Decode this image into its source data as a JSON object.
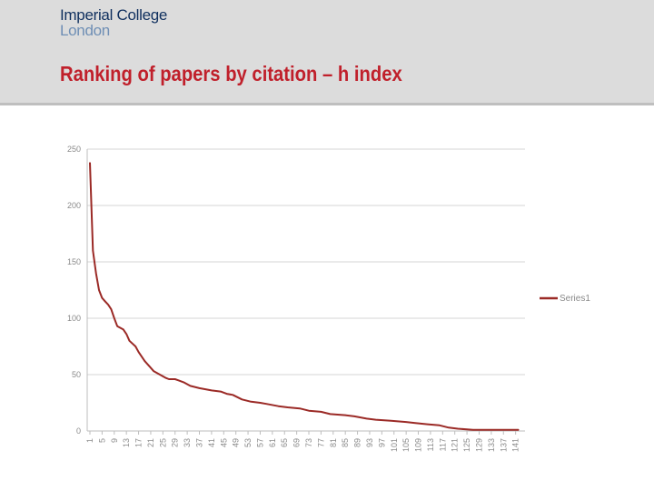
{
  "header": {
    "logo_line1": "Imperial College",
    "logo_line2": "London",
    "title": "Ranking of papers by citation – h index"
  },
  "colors": {
    "series": "#9b2a26",
    "title": "#c0202b",
    "header_bg": "#dcdcdc"
  },
  "chart_data": {
    "type": "line",
    "title": "",
    "xlabel": "",
    "ylabel": "",
    "ylim": [
      0,
      250
    ],
    "yticks": [
      0,
      50,
      100,
      150,
      200,
      250
    ],
    "xlim": [
      1,
      142
    ],
    "xticks": [
      1,
      5,
      9,
      13,
      17,
      21,
      25,
      29,
      33,
      37,
      41,
      45,
      49,
      53,
      57,
      61,
      65,
      69,
      73,
      77,
      81,
      85,
      89,
      93,
      97,
      101,
      105,
      109,
      113,
      117,
      121,
      125,
      129,
      133,
      137,
      141
    ],
    "grid": true,
    "legend": "right",
    "series": [
      {
        "name": "Series1",
        "color": "#9b2a26",
        "x": [
          1,
          2,
          3,
          4,
          5,
          6,
          7,
          8,
          9,
          10,
          12,
          13,
          14,
          16,
          17,
          19,
          21,
          22,
          24,
          26,
          27,
          29,
          30,
          32,
          34,
          37,
          41,
          44,
          46,
          48,
          51,
          54,
          57,
          59,
          63,
          66,
          70,
          73,
          77,
          80,
          85,
          88,
          92,
          95,
          100,
          105,
          108,
          112,
          116,
          119,
          122,
          127,
          132,
          137,
          142
        ],
        "y": [
          238,
          160,
          140,
          125,
          118,
          115,
          112,
          108,
          100,
          93,
          90,
          86,
          80,
          75,
          70,
          62,
          56,
          53,
          50,
          47,
          46,
          46,
          45,
          43,
          40,
          38,
          36,
          35,
          33,
          32,
          28,
          26,
          25,
          24,
          22,
          21,
          20,
          18,
          17,
          15,
          14,
          13,
          11,
          10,
          9,
          8,
          7,
          6,
          5,
          3,
          2,
          1,
          1,
          1,
          1
        ]
      }
    ]
  }
}
